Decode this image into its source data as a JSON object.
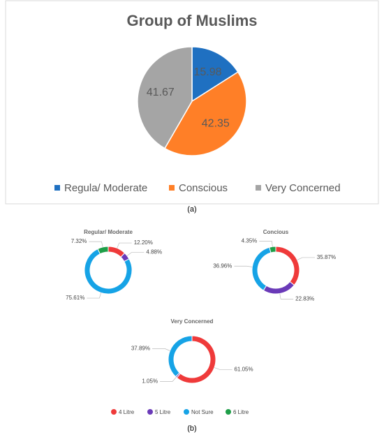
{
  "chart_data": [
    {
      "type": "pie",
      "title": "Group of Muslims",
      "categories": [
        "Regula/ Moderate",
        "Conscious",
        "Very Concerned"
      ],
      "values": [
        15.98,
        42.35,
        41.67
      ],
      "colors": [
        "#1f70c1",
        "#ff7f27",
        "#a5a5a5"
      ]
    },
    {
      "type": "donut",
      "title": "Regular/ Moderate",
      "categories": [
        "4 Litre",
        "5 Litre",
        "Not Sure",
        "6 Litre"
      ],
      "values": [
        12.2,
        4.88,
        75.61,
        7.32
      ],
      "value_labels": [
        "12.20%",
        "4.88%",
        "75.61%",
        "7.32%"
      ],
      "colors": [
        "#ef3a3a",
        "#6a3ab8",
        "#16a3e6",
        "#1e9e48"
      ]
    },
    {
      "type": "donut",
      "title": "Concious",
      "categories": [
        "4 Litre",
        "5 Litre",
        "Not Sure",
        "6 Litre"
      ],
      "values": [
        35.87,
        22.83,
        36.96,
        4.35
      ],
      "value_labels": [
        "35.87%",
        "22.83%",
        "36.96%",
        "4.35%"
      ],
      "colors": [
        "#ef3a3a",
        "#6a3ab8",
        "#16a3e6",
        "#1e9e48"
      ]
    },
    {
      "type": "donut",
      "title": "Very Concerned",
      "categories": [
        "4 Litre",
        "5 Litre",
        "Not Sure",
        "6 Litre"
      ],
      "values": [
        61.05,
        1.05,
        37.89,
        null
      ],
      "value_labels": [
        "61.05%",
        "1.05%",
        "37.89%",
        null
      ],
      "colors": [
        "#ef3a3a",
        "#6a3ab8",
        "#16a3e6",
        "#1e9e48"
      ]
    }
  ],
  "panel_labels": [
    "(a)",
    "(b)"
  ]
}
